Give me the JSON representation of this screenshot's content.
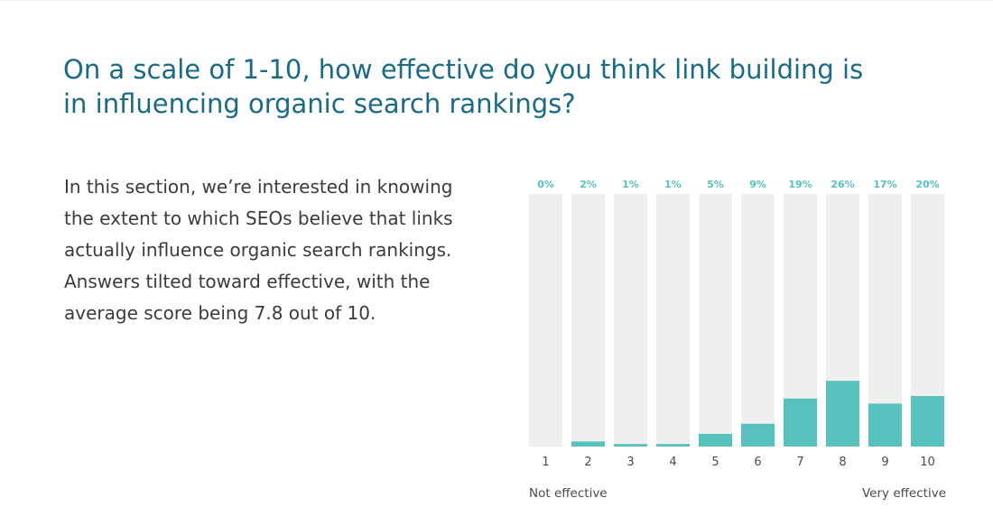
{
  "heading": "On a scale of 1-10, how effective do you think link building is in influencing organic search rankings?",
  "intro": "In this section, we’re interested in knowing the extent to which SEOs believe that links actually influence organic search rankings. Answers tilted toward effective, with the average score being 7.8 out of 10.",
  "colors": {
    "title": "#1a6a86",
    "bar": "#57c1bd",
    "track": "#efefef",
    "text": "#3b3b3b"
  },
  "chart_data": {
    "type": "bar",
    "categories": [
      "1",
      "2",
      "3",
      "4",
      "5",
      "6",
      "7",
      "8",
      "9",
      "10"
    ],
    "values": [
      0,
      2,
      1,
      1,
      5,
      9,
      19,
      26,
      17,
      20
    ],
    "value_labels": [
      "0%",
      "2%",
      "1%",
      "1%",
      "5%",
      "9%",
      "19%",
      "26%",
      "17%",
      "20%"
    ],
    "unit": "%",
    "ylim": [
      0,
      100
    ],
    "grid": false,
    "scale_low_label": "Not effective",
    "scale_high_label": "Very effective"
  }
}
